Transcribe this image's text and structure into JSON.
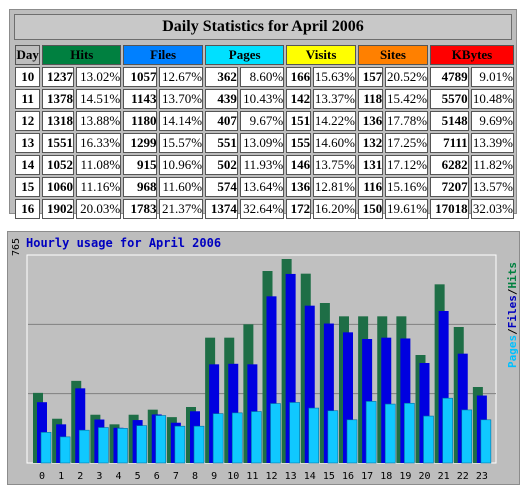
{
  "daily": {
    "title": "Daily Statistics for April 2006",
    "headers": [
      {
        "label": "Day",
        "color": "#bdbdbd"
      },
      {
        "label": "Hits",
        "color": "#008040"
      },
      {
        "label": "Files",
        "color": "#0080ff"
      },
      {
        "label": "Pages",
        "color": "#00e0ff"
      },
      {
        "label": "Visits",
        "color": "#ffff00"
      },
      {
        "label": "Sites",
        "color": "#ff8000"
      },
      {
        "label": "KBytes",
        "color": "#ff0000"
      }
    ],
    "rows": [
      {
        "day": "10",
        "hits": "1237",
        "hits_pct": "13.02%",
        "files": "1057",
        "files_pct": "12.67%",
        "pages": "362",
        "pages_pct": "8.60%",
        "visits": "166",
        "visits_pct": "15.63%",
        "sites": "157",
        "sites_pct": "20.52%",
        "kbytes": "4789",
        "kbytes_pct": "9.01%"
      },
      {
        "day": "11",
        "hits": "1378",
        "hits_pct": "14.51%",
        "files": "1143",
        "files_pct": "13.70%",
        "pages": "439",
        "pages_pct": "10.43%",
        "visits": "142",
        "visits_pct": "13.37%",
        "sites": "118",
        "sites_pct": "15.42%",
        "kbytes": "5570",
        "kbytes_pct": "10.48%"
      },
      {
        "day": "12",
        "hits": "1318",
        "hits_pct": "13.88%",
        "files": "1180",
        "files_pct": "14.14%",
        "pages": "407",
        "pages_pct": "9.67%",
        "visits": "151",
        "visits_pct": "14.22%",
        "sites": "136",
        "sites_pct": "17.78%",
        "kbytes": "5148",
        "kbytes_pct": "9.69%"
      },
      {
        "day": "13",
        "hits": "1551",
        "hits_pct": "16.33%",
        "files": "1299",
        "files_pct": "15.57%",
        "pages": "551",
        "pages_pct": "13.09%",
        "visits": "155",
        "visits_pct": "14.60%",
        "sites": "132",
        "sites_pct": "17.25%",
        "kbytes": "7111",
        "kbytes_pct": "13.39%"
      },
      {
        "day": "14",
        "hits": "1052",
        "hits_pct": "11.08%",
        "files": "915",
        "files_pct": "10.96%",
        "pages": "502",
        "pages_pct": "11.93%",
        "visits": "146",
        "visits_pct": "13.75%",
        "sites": "131",
        "sites_pct": "17.12%",
        "kbytes": "6282",
        "kbytes_pct": "11.82%"
      },
      {
        "day": "15",
        "hits": "1060",
        "hits_pct": "11.16%",
        "files": "968",
        "files_pct": "11.60%",
        "pages": "574",
        "pages_pct": "13.64%",
        "visits": "136",
        "visits_pct": "12.81%",
        "sites": "116",
        "sites_pct": "15.16%",
        "kbytes": "7207",
        "kbytes_pct": "13.57%"
      },
      {
        "day": "16",
        "hits": "1902",
        "hits_pct": "20.03%",
        "files": "1783",
        "files_pct": "21.37%",
        "pages": "1374",
        "pages_pct": "32.64%",
        "visits": "172",
        "visits_pct": "16.20%",
        "sites": "150",
        "sites_pct": "19.61%",
        "kbytes": "17018",
        "kbytes_pct": "32.03%"
      }
    ]
  },
  "hourly": {
    "title": "Hourly usage for April 2006",
    "ymax_label": "765",
    "legend": [
      {
        "label": "Pages",
        "color": "#00c0ff"
      },
      {
        "label": "/",
        "color": "#000000"
      },
      {
        "label": "Files",
        "color": "#0000c0"
      },
      {
        "label": "/",
        "color": "#000000"
      },
      {
        "label": "Hits",
        "color": "#008040"
      }
    ]
  },
  "chart_data": {
    "type": "bar",
    "title": "Hourly usage for April 2006",
    "ylim": [
      0,
      765
    ],
    "categories": [
      "0",
      "1",
      "2",
      "3",
      "4",
      "5",
      "6",
      "7",
      "8",
      "9",
      "10",
      "11",
      "12",
      "13",
      "14",
      "15",
      "16",
      "17",
      "18",
      "19",
      "20",
      "21",
      "22",
      "23"
    ],
    "series": [
      {
        "name": "Hits",
        "color": "#1e6e46",
        "values": [
          263,
          166,
          308,
          181,
          145,
          181,
          200,
          172,
          210,
          470,
          470,
          520,
          720,
          765,
          710,
          600,
          550,
          550,
          550,
          550,
          405,
          670,
          510,
          285
        ]
      },
      {
        "name": "Files",
        "color": "#0000e0",
        "values": [
          228,
          145,
          280,
          163,
          132,
          161,
          182,
          151,
          194,
          370,
          372,
          370,
          625,
          709,
          590,
          523,
          490,
          465,
          470,
          467,
          375,
          570,
          410,
          253
        ]
      },
      {
        "name": "Pages",
        "color": "#10c8ff",
        "values": [
          115,
          98,
          123,
          133,
          130,
          140,
          178,
          138,
          138,
          185,
          188,
          193,
          223,
          227,
          206,
          196,
          162,
          231,
          221,
          224,
          176,
          243,
          199,
          162
        ]
      }
    ]
  }
}
